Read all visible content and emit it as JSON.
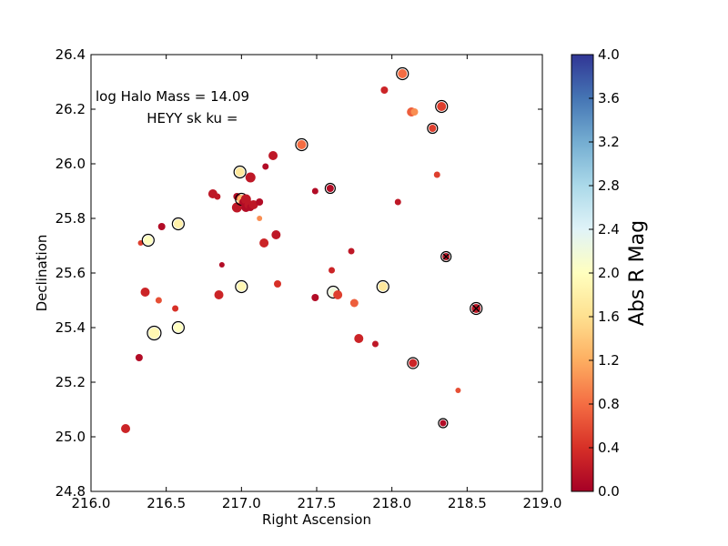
{
  "chart_data": {
    "type": "scatter",
    "xlabel": "Right Ascension",
    "ylabel": "Declination",
    "xlim": [
      216.0,
      219.0
    ],
    "ylim": [
      24.8,
      26.4
    ],
    "xticks": [
      "216.0",
      "216.5",
      "217.0",
      "217.5",
      "218.0",
      "218.5",
      "219.0"
    ],
    "yticks": [
      "24.8",
      "25.0",
      "25.2",
      "25.4",
      "25.6",
      "25.8",
      "26.0",
      "26.2",
      "26.4"
    ],
    "annotations": [
      {
        "text": "log Halo Mass = 14.09",
        "x": 216.0,
        "y": 26.23
      },
      {
        "text": "HEYY sk ku =",
        "x": 216.34,
        "y": 26.15
      }
    ],
    "colorbar": {
      "label": "Abs R Mag",
      "range": [
        0.0,
        4.0
      ],
      "ticks": [
        "0.0",
        "0.4",
        "0.8",
        "1.2",
        "1.6",
        "2.0",
        "2.4",
        "2.8",
        "3.2",
        "3.6",
        "4.0"
      ],
      "colormap": "RdYlBu",
      "stops": [
        "#a50026",
        "#d73027",
        "#f46d43",
        "#fdae61",
        "#fee090",
        "#ffffbf",
        "#e0f3f8",
        "#abd9e9",
        "#74add1",
        "#4575b4",
        "#313695"
      ]
    },
    "points": [
      {
        "x": 216.23,
        "y": 25.03,
        "c": 0.3,
        "s": 5
      },
      {
        "x": 216.32,
        "y": 25.29,
        "c": 0.1,
        "s": 4
      },
      {
        "x": 216.33,
        "y": 25.71,
        "c": 0.5,
        "s": 3
      },
      {
        "x": 216.36,
        "y": 25.53,
        "c": 0.3,
        "s": 5
      },
      {
        "x": 216.38,
        "y": 25.72,
        "c": 2.0,
        "s": 5,
        "ring": true
      },
      {
        "x": 216.42,
        "y": 25.38,
        "c": 1.9,
        "s": 6,
        "ring": true
      },
      {
        "x": 216.45,
        "y": 25.5,
        "c": 0.6,
        "s": 3.5
      },
      {
        "x": 216.47,
        "y": 25.77,
        "c": 0.1,
        "s": 4
      },
      {
        "x": 216.56,
        "y": 25.47,
        "c": 0.4,
        "s": 3.5
      },
      {
        "x": 216.58,
        "y": 25.78,
        "c": 1.8,
        "s": 5,
        "ring": true
      },
      {
        "x": 216.58,
        "y": 25.4,
        "c": 2.0,
        "s": 5,
        "ring": true
      },
      {
        "x": 216.81,
        "y": 25.89,
        "c": 0.2,
        "s": 5
      },
      {
        "x": 216.84,
        "y": 25.88,
        "c": 0.2,
        "s": 3.5
      },
      {
        "x": 216.85,
        "y": 25.52,
        "c": 0.3,
        "s": 5
      },
      {
        "x": 216.87,
        "y": 25.63,
        "c": 0.1,
        "s": 3
      },
      {
        "x": 216.97,
        "y": 25.88,
        "c": 0.1,
        "s": 4
      },
      {
        "x": 216.97,
        "y": 25.84,
        "c": 0.2,
        "s": 5.5
      },
      {
        "x": 216.99,
        "y": 25.97,
        "c": 1.7,
        "s": 5,
        "ring": true
      },
      {
        "x": 217.0,
        "y": 25.87,
        "c": 1.3,
        "s": 5,
        "ring": true
      },
      {
        "x": 217.0,
        "y": 25.55,
        "c": 1.9,
        "s": 5,
        "ring": true
      },
      {
        "x": 217.01,
        "y": 25.86,
        "c": 0.1,
        "s": 4
      },
      {
        "x": 217.03,
        "y": 25.87,
        "c": 0.2,
        "s": 5.5
      },
      {
        "x": 217.03,
        "y": 25.84,
        "c": 0.1,
        "s": 5
      },
      {
        "x": 217.05,
        "y": 25.85,
        "c": 0.2,
        "s": 5
      },
      {
        "x": 217.06,
        "y": 25.95,
        "c": 0.2,
        "s": 5.5
      },
      {
        "x": 217.06,
        "y": 25.84,
        "c": 0.1,
        "s": 4
      },
      {
        "x": 217.08,
        "y": 25.85,
        "c": 0.2,
        "s": 5
      },
      {
        "x": 217.12,
        "y": 25.86,
        "c": 0.1,
        "s": 4
      },
      {
        "x": 217.12,
        "y": 25.8,
        "c": 1.0,
        "s": 3
      },
      {
        "x": 217.15,
        "y": 25.71,
        "c": 0.3,
        "s": 5
      },
      {
        "x": 217.16,
        "y": 25.99,
        "c": 0.1,
        "s": 3.5
      },
      {
        "x": 217.21,
        "y": 26.03,
        "c": 0.2,
        "s": 5
      },
      {
        "x": 217.23,
        "y": 25.74,
        "c": 0.2,
        "s": 5
      },
      {
        "x": 217.24,
        "y": 25.56,
        "c": 0.4,
        "s": 4
      },
      {
        "x": 217.4,
        "y": 26.07,
        "c": 0.8,
        "s": 5,
        "ring": true
      },
      {
        "x": 217.49,
        "y": 25.9,
        "c": 0.1,
        "s": 3.5
      },
      {
        "x": 217.49,
        "y": 25.51,
        "c": 0.1,
        "s": 4
      },
      {
        "x": 217.59,
        "y": 25.91,
        "c": 0.1,
        "s": 4,
        "ring": true
      },
      {
        "x": 217.6,
        "y": 25.61,
        "c": 0.3,
        "s": 3.5
      },
      {
        "x": 217.61,
        "y": 25.53,
        "c": 2.2,
        "s": 5,
        "ring": true
      },
      {
        "x": 217.64,
        "y": 25.52,
        "c": 0.5,
        "s": 5
      },
      {
        "x": 217.73,
        "y": 25.68,
        "c": 0.2,
        "s": 3.5
      },
      {
        "x": 217.75,
        "y": 25.49,
        "c": 0.7,
        "s": 4.5
      },
      {
        "x": 217.78,
        "y": 25.36,
        "c": 0.3,
        "s": 5
      },
      {
        "x": 217.89,
        "y": 25.34,
        "c": 0.2,
        "s": 3.5
      },
      {
        "x": 217.94,
        "y": 25.55,
        "c": 1.7,
        "s": 5,
        "ring": true
      },
      {
        "x": 217.95,
        "y": 26.27,
        "c": 0.3,
        "s": 4
      },
      {
        "x": 218.04,
        "y": 25.86,
        "c": 0.2,
        "s": 3.5
      },
      {
        "x": 218.07,
        "y": 26.33,
        "c": 0.8,
        "s": 5,
        "ring": true
      },
      {
        "x": 218.13,
        "y": 26.19,
        "c": 0.7,
        "s": 5
      },
      {
        "x": 218.15,
        "y": 26.19,
        "c": 1.0,
        "s": 4
      },
      {
        "x": 218.14,
        "y": 25.27,
        "c": 0.3,
        "s": 4.5,
        "ring": true
      },
      {
        "x": 218.27,
        "y": 26.13,
        "c": 0.5,
        "s": 4,
        "ring": true
      },
      {
        "x": 218.3,
        "y": 25.96,
        "c": 0.5,
        "s": 3.5
      },
      {
        "x": 218.33,
        "y": 26.21,
        "c": 0.5,
        "s": 5,
        "ring": true
      },
      {
        "x": 218.34,
        "y": 25.05,
        "c": 0.1,
        "s": 3.5,
        "ring": true
      },
      {
        "x": 218.36,
        "y": 25.66,
        "c": 0.2,
        "s": 4,
        "ring": true,
        "cross": true
      },
      {
        "x": 218.44,
        "y": 25.17,
        "c": 0.6,
        "s": 3
      },
      {
        "x": 218.56,
        "y": 25.47,
        "c": 0.2,
        "s": 5,
        "ring": true,
        "cross": true
      }
    ]
  }
}
